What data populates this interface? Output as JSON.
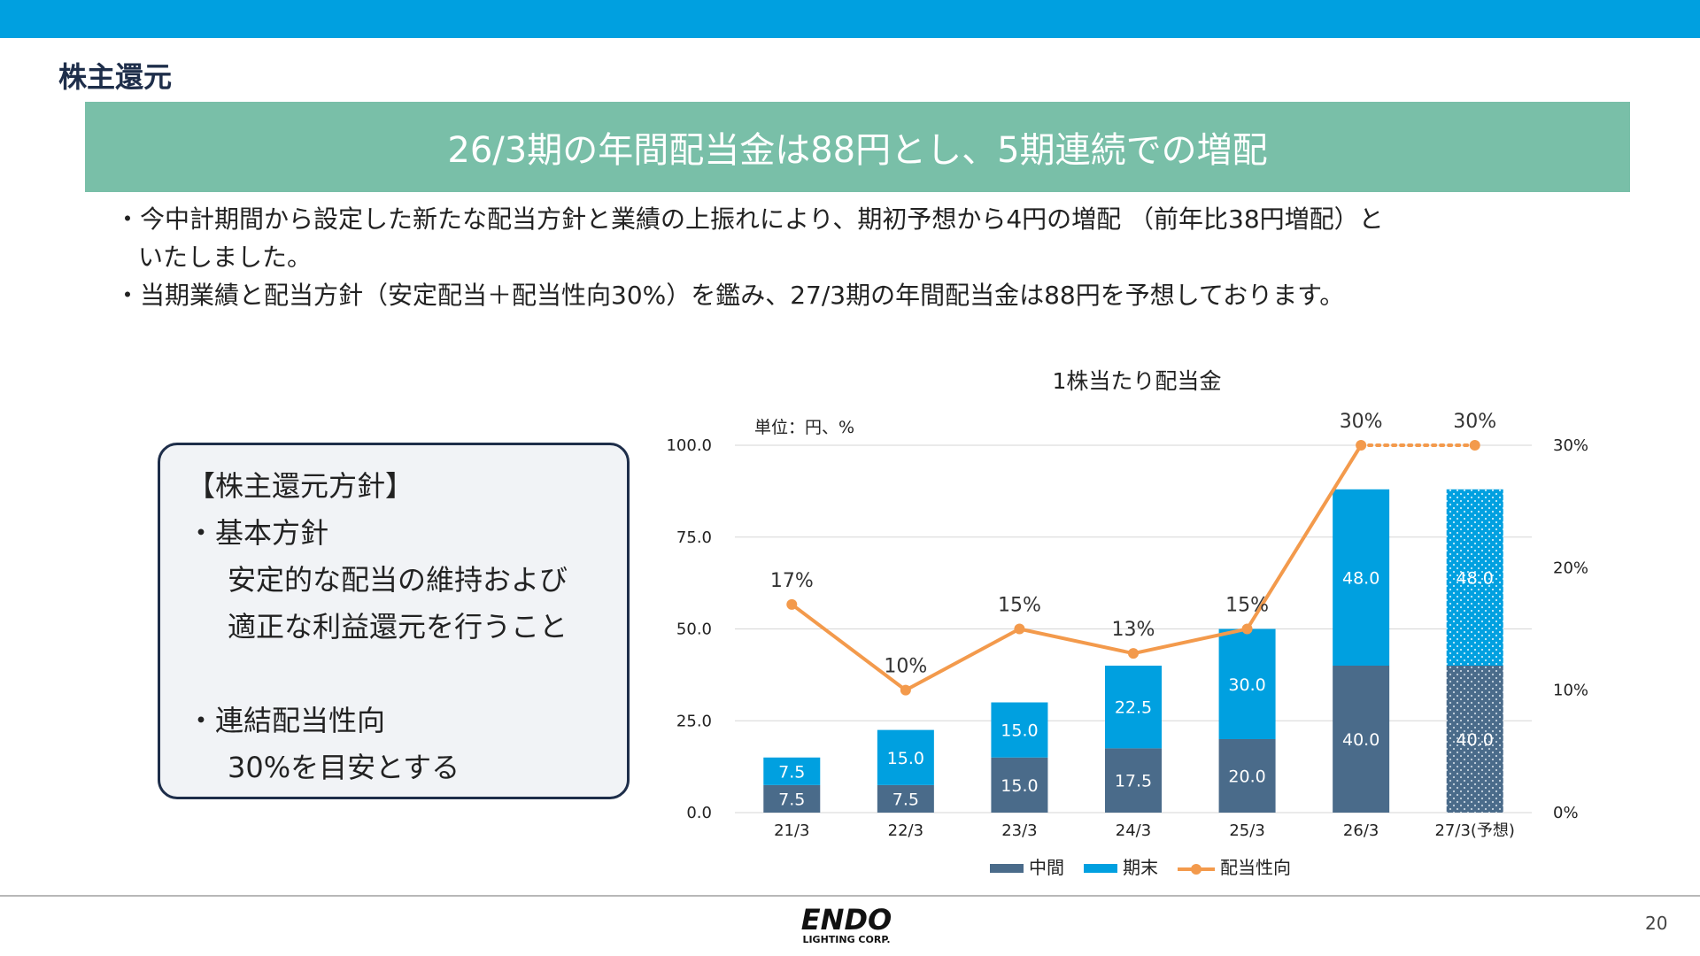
{
  "header": {
    "title": "株主還元"
  },
  "banner": {
    "text": "26/3期の年間配当金は88円とし、5期連続での増配"
  },
  "bullets": {
    "b1_line1": "・今中計期間から設定した新たな配当方針と業績の上振れにより、期初予想から4円の増配 （前年比38円増配）と",
    "b1_line2": "いたしました。",
    "b2": "・当期業績と配当方針（安定配当＋配当性向30%）を鑑み、27/3期の年間配当金は88円を予想しております。"
  },
  "policy": {
    "heading": "【株主還元方針】",
    "basic_title": "・基本方針",
    "basic_line1": "安定的な配当の維持および",
    "basic_line2": "適正な利益還元を行うこと",
    "payout_title": "・連結配当性向",
    "payout_line1": "30%を目安とする"
  },
  "footer": {
    "logo_top": "ENDO",
    "logo_bottom": "LIGHTING CORP.",
    "page_number": "20"
  },
  "colors": {
    "interim": "#4a6b8a",
    "year_end": "#00a0e0",
    "payout": "#f39a4c",
    "banner": "#79bfa8",
    "top_bar": "#00a0e0"
  },
  "chart_data": {
    "type": "bar",
    "stacked": true,
    "title": "1株当たり配当金",
    "unit_label": "単位：円、%",
    "categories": [
      "21/3",
      "22/3",
      "23/3",
      "24/3",
      "25/3",
      "26/3",
      "27/3(予想)"
    ],
    "forecast_category": "27/3(予想)",
    "series": [
      {
        "name": "中間",
        "values": [
          7.5,
          7.5,
          15.0,
          17.5,
          20.0,
          40.0,
          40.0
        ],
        "labels": [
          "7.5",
          "7.5",
          "15.0",
          "17.5",
          "20.0",
          "40.0",
          "40.0"
        ]
      },
      {
        "name": "期末",
        "values": [
          7.5,
          15.0,
          15.0,
          22.5,
          30.0,
          48.0,
          48.0
        ],
        "labels": [
          "7.5",
          "15.0",
          "15.0",
          "22.5",
          "30.0",
          "48.0",
          "48.0"
        ]
      }
    ],
    "line_series": {
      "name": "配当性向",
      "axis": "right",
      "values": [
        17,
        10,
        15,
        13,
        15,
        30,
        30
      ],
      "labels": [
        "17%",
        "10%",
        "15%",
        "13%",
        "15%",
        "30%",
        "30%"
      ],
      "forecast_dotted_from": "26/3"
    },
    "y_left": {
      "ylim": [
        0,
        100
      ],
      "ticks": [
        "0.0",
        "25.0",
        "50.0",
        "75.0",
        "100.0"
      ]
    },
    "y_right": {
      "ylim": [
        0,
        30
      ],
      "ticks": [
        "0%",
        "10%",
        "20%",
        "30%"
      ]
    },
    "grid": true,
    "legend": "bottom"
  }
}
